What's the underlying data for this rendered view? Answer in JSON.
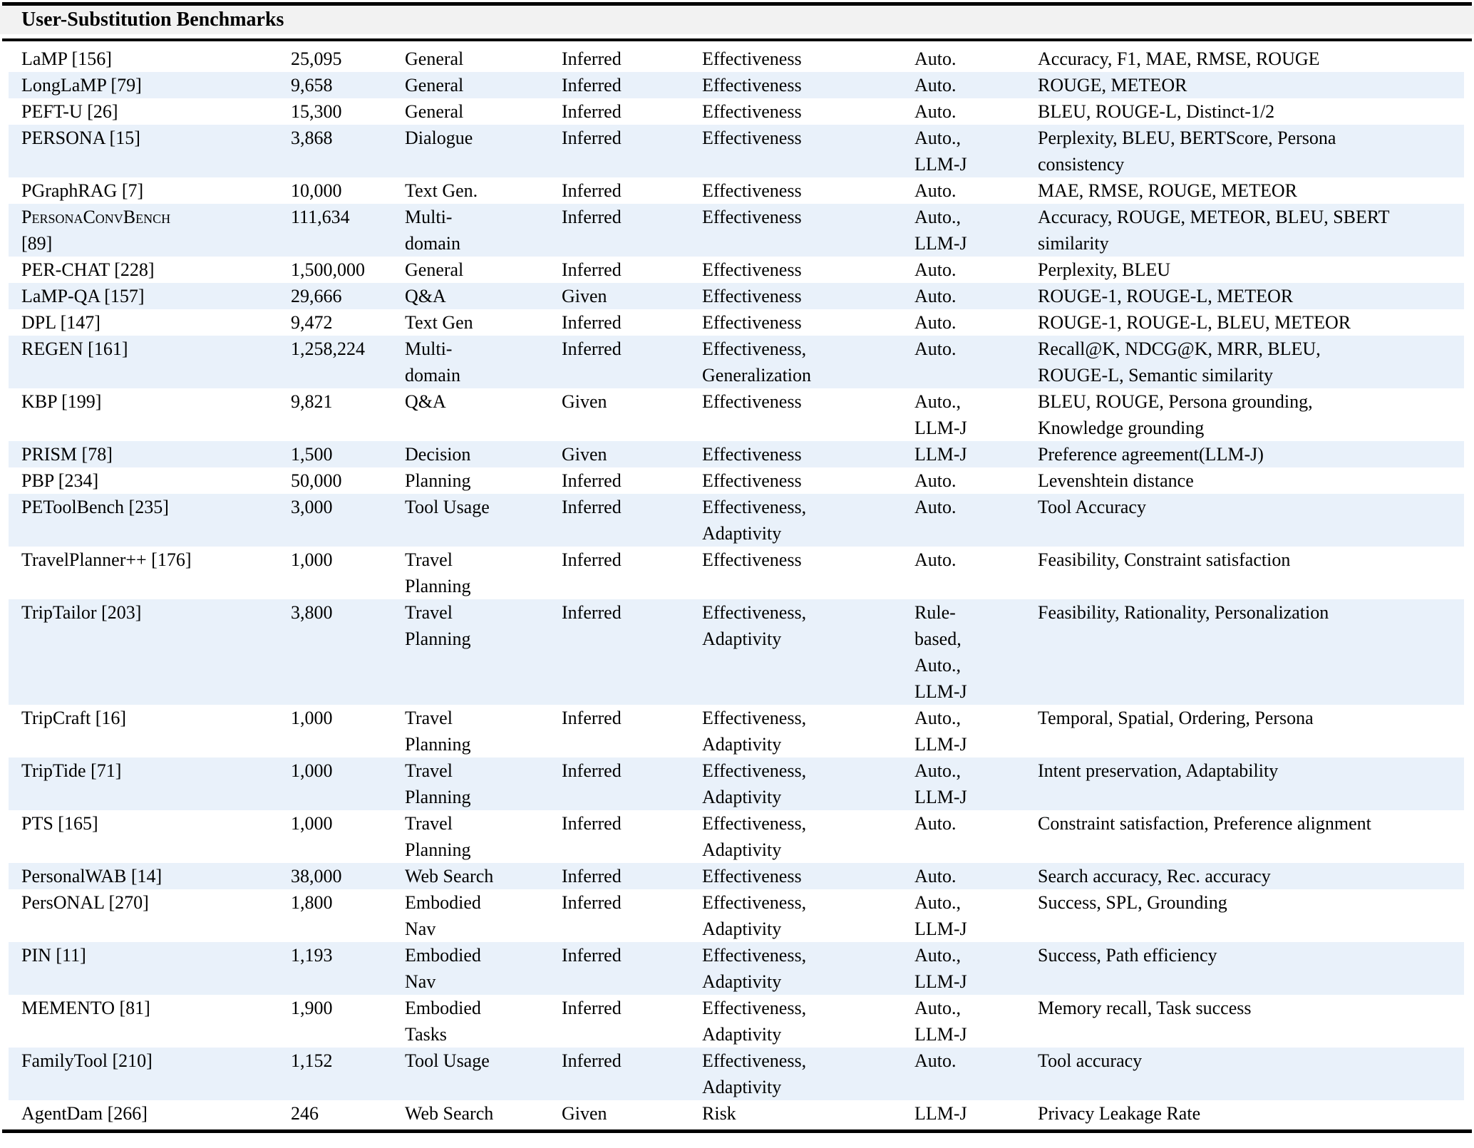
{
  "colors": {
    "stripe": "#e9f1fa",
    "header_bg": "#f2f2f2",
    "rule": "#000000",
    "text": "#000000"
  },
  "table": {
    "title": "User-Substitution Benchmarks",
    "rows": [
      {
        "name": "LaMP [156]",
        "size": "25,095",
        "domain": "General",
        "profile": "Inferred",
        "aspects": "Effectiveness",
        "evaluator": "Auto.",
        "metrics": "Accuracy, F1, MAE, RMSE, ROUGE"
      },
      {
        "name": "LongLaMP [79]",
        "size": "9,658",
        "domain": "General",
        "profile": "Inferred",
        "aspects": "Effectiveness",
        "evaluator": "Auto.",
        "metrics": "ROUGE, METEOR"
      },
      {
        "name": "PEFT-U [26]",
        "size": "15,300",
        "domain": "General",
        "profile": "Inferred",
        "aspects": "Effectiveness",
        "evaluator": "Auto.",
        "metrics": "BLEU, ROUGE-L, Distinct-1/2"
      },
      {
        "name": "PERSONA [15]",
        "size": "3,868",
        "domain": "Dialogue",
        "profile": "Inferred",
        "aspects": "Effectiveness",
        "evaluator": "Auto.,\nLLM-J",
        "metrics": "Perplexity, BLEU, BERTScore, Persona\nconsistency"
      },
      {
        "name": "PGraphRAG [7]",
        "size": "10,000",
        "domain": "Text Gen.",
        "profile": "Inferred",
        "aspects": "Effectiveness",
        "evaluator": "Auto.",
        "metrics": "MAE, RMSE, ROUGE, METEOR"
      },
      {
        "name": "PersonaConvBench\n[89]",
        "name_style": "smallcaps",
        "size": "111,634",
        "domain": "Multi-\ndomain",
        "profile": "Inferred",
        "aspects": "Effectiveness",
        "evaluator": "Auto.,\nLLM-J",
        "metrics": "Accuracy, ROUGE, METEOR, BLEU, SBERT\nsimilarity"
      },
      {
        "name": "PER-CHAT [228]",
        "size": "1,500,000",
        "domain": "General",
        "profile": "Inferred",
        "aspects": "Effectiveness",
        "evaluator": "Auto.",
        "metrics": "Perplexity, BLEU"
      },
      {
        "name": "LaMP-QA [157]",
        "size": "29,666",
        "domain": "Q&A",
        "profile": "Given",
        "aspects": "Effectiveness",
        "evaluator": "Auto.",
        "metrics": "ROUGE-1, ROUGE-L, METEOR"
      },
      {
        "name": "DPL [147]",
        "size": "9,472",
        "domain": "Text Gen",
        "profile": "Inferred",
        "aspects": "Effectiveness",
        "evaluator": "Auto.",
        "metrics": "ROUGE-1, ROUGE-L, BLEU, METEOR"
      },
      {
        "name": "REGEN [161]",
        "size": "1,258,224",
        "domain": "Multi-\ndomain",
        "profile": "Inferred",
        "aspects": "Effectiveness,\nGeneralization",
        "evaluator": "Auto.",
        "metrics": "Recall@K, NDCG@K, MRR, BLEU,\nROUGE-L, Semantic similarity"
      },
      {
        "name": "KBP [199]",
        "size": "9,821",
        "domain": "Q&A",
        "profile": "Given",
        "aspects": "Effectiveness",
        "evaluator": "Auto.,\nLLM-J",
        "metrics": "BLEU, ROUGE, Persona grounding,\nKnowledge grounding"
      },
      {
        "name": "PRISM [78]",
        "size": "1,500",
        "domain": "Decision",
        "profile": "Given",
        "aspects": "Effectiveness",
        "evaluator": "LLM-J",
        "metrics": "Preference agreement(LLM-J)"
      },
      {
        "name": "PBP [234]",
        "size": "50,000",
        "domain": "Planning",
        "profile": "Inferred",
        "aspects": "Effectiveness",
        "evaluator": "Auto.",
        "metrics": "Levenshtein distance"
      },
      {
        "name": "PEToolBench [235]",
        "size": "3,000",
        "domain": "Tool Usage",
        "profile": "Inferred",
        "aspects": "Effectiveness,\nAdaptivity",
        "evaluator": "Auto.",
        "metrics": "Tool Accuracy"
      },
      {
        "name": "TravelPlanner++ [176]",
        "size": "1,000",
        "domain": "Travel\nPlanning",
        "profile": "Inferred",
        "aspects": "Effectiveness",
        "evaluator": "Auto.",
        "metrics": "Feasibility, Constraint satisfaction"
      },
      {
        "name": "TripTailor [203]",
        "size": "3,800",
        "domain": "Travel\nPlanning",
        "profile": "Inferred",
        "aspects": "Effectiveness,\nAdaptivity",
        "evaluator": "Rule-\nbased,\nAuto.,\nLLM-J",
        "metrics": "Feasibility, Rationality, Personalization"
      },
      {
        "name": "TripCraft [16]",
        "size": "1,000",
        "domain": "Travel\nPlanning",
        "profile": "Inferred",
        "aspects": "Effectiveness,\nAdaptivity",
        "evaluator": "Auto.,\nLLM-J",
        "metrics": "Temporal, Spatial, Ordering, Persona"
      },
      {
        "name": "TripTide [71]",
        "size": "1,000",
        "domain": "Travel\nPlanning",
        "profile": "Inferred",
        "aspects": "Effectiveness,\nAdaptivity",
        "evaluator": "Auto.,\nLLM-J",
        "metrics": "Intent preservation, Adaptability"
      },
      {
        "name": "PTS [165]",
        "size": "1,000",
        "domain": "Travel\nPlanning",
        "profile": "Inferred",
        "aspects": "Effectiveness,\nAdaptivity",
        "evaluator": "Auto.",
        "metrics": "Constraint satisfaction, Preference alignment"
      },
      {
        "name": "PersonalWAB [14]",
        "size": "38,000",
        "domain": "Web Search",
        "profile": "Inferred",
        "aspects": "Effectiveness",
        "evaluator": "Auto.",
        "metrics": "Search accuracy, Rec. accuracy"
      },
      {
        "name": "PersONAL [270]",
        "size": "1,800",
        "domain": "Embodied\nNav",
        "profile": "Inferred",
        "aspects": "Effectiveness,\nAdaptivity",
        "evaluator": "Auto.,\nLLM-J",
        "metrics": "Success, SPL, Grounding"
      },
      {
        "name": "PIN [11]",
        "size": "1,193",
        "domain": "Embodied\nNav",
        "profile": "Inferred",
        "aspects": "Effectiveness,\nAdaptivity",
        "evaluator": "Auto.,\nLLM-J",
        "metrics": "Success, Path efficiency"
      },
      {
        "name": "MEMENTO [81]",
        "size": "1,900",
        "domain": "Embodied\nTasks",
        "profile": "Inferred",
        "aspects": "Effectiveness,\nAdaptivity",
        "evaluator": "Auto.,\nLLM-J",
        "metrics": "Memory recall, Task success"
      },
      {
        "name": "FamilyTool [210]",
        "size": "1,152",
        "domain": "Tool Usage",
        "profile": "Inferred",
        "aspects": "Effectiveness,\nAdaptivity",
        "evaluator": "Auto.",
        "metrics": "Tool accuracy"
      },
      {
        "name": "AgentDam [266]",
        "size": "246",
        "domain": "Web Search",
        "profile": "Given",
        "aspects": "Risk",
        "evaluator": "LLM-J",
        "metrics": "Privacy Leakage Rate"
      }
    ]
  }
}
